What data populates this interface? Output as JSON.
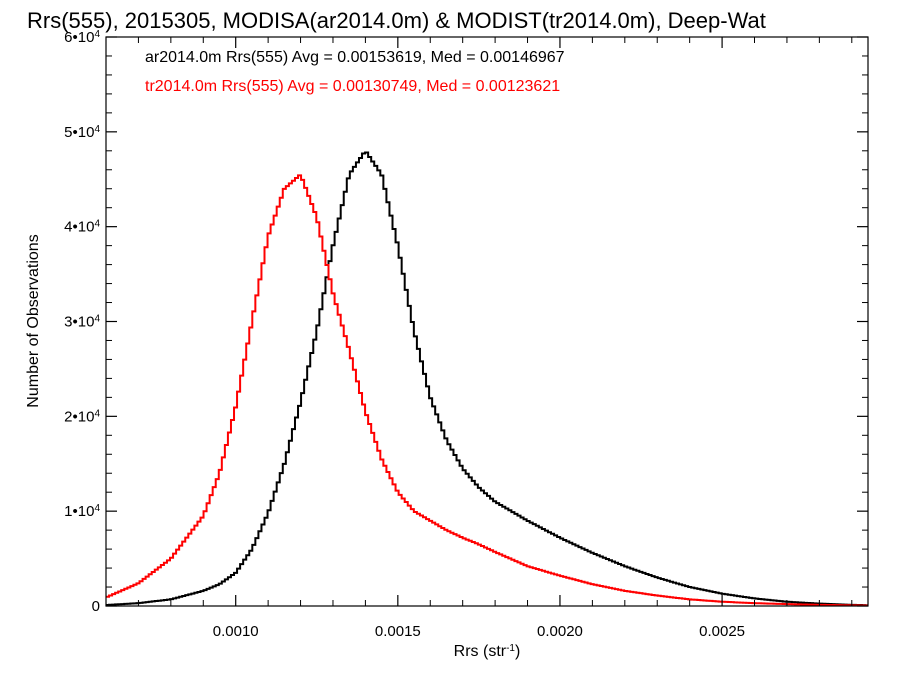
{
  "chart_data": {
    "type": "line",
    "step": true,
    "title": "Rrs(555), 2015305, MODISA(ar2014.0m) & MODIST(tr2014.0m), Deep-Wat",
    "xlabel": "Rrs (str",
    "xlabel_sup": "-1",
    "xlabel_suffix": ")",
    "ylabel": "Number of Observations",
    "xlim": [
      0.0006,
      0.00295
    ],
    "ylim": [
      0,
      60000
    ],
    "grid": false,
    "x_ticks": [
      {
        "value": 0.001,
        "label": "0.0010"
      },
      {
        "value": 0.0015,
        "label": "0.0015"
      },
      {
        "value": 0.002,
        "label": "0.0020"
      },
      {
        "value": 0.0025,
        "label": "0.0025"
      }
    ],
    "y_ticks": [
      {
        "value": 0,
        "label": "0",
        "exp": ""
      },
      {
        "value": 10000,
        "label": "1•10",
        "exp": "4"
      },
      {
        "value": 20000,
        "label": "2•10",
        "exp": "4"
      },
      {
        "value": 30000,
        "label": "3•10",
        "exp": "4"
      },
      {
        "value": 40000,
        "label": "4•10",
        "exp": "4"
      },
      {
        "value": 50000,
        "label": "5•10",
        "exp": "4"
      },
      {
        "value": 60000,
        "label": "6•10",
        "exp": "4"
      }
    ],
    "annotations": [
      {
        "text": "ar2014.0m Rrs(555) Avg = 0.00153619, Med = 0.00146967",
        "color": "#000000"
      },
      {
        "text": "tr2014.0m Rrs(555) Avg = 0.00130749, Med = 0.00123621",
        "color": "#ff0000"
      }
    ],
    "series": [
      {
        "color": "#000000",
        "x": [
          0.0006,
          0.0007,
          0.0008,
          0.0009,
          0.00095,
          0.001,
          0.00105,
          0.0011,
          0.00115,
          0.0012,
          0.00125,
          0.0013,
          0.00135,
          0.0014,
          0.00145,
          0.0015,
          0.00155,
          0.0016,
          0.00165,
          0.0017,
          0.00175,
          0.0018,
          0.0019,
          0.002,
          0.0021,
          0.0022,
          0.0023,
          0.0024,
          0.0025,
          0.0026,
          0.0027,
          0.0028,
          0.0029,
          0.00295
        ],
        "y": [
          100,
          300,
          700,
          1600,
          2300,
          3500,
          6000,
          9800,
          15000,
          21500,
          29000,
          38000,
          45500,
          48000,
          45500,
          38000,
          29000,
          22000,
          17500,
          14500,
          12500,
          11000,
          9000,
          7200,
          5600,
          4200,
          3000,
          2000,
          1300,
          800,
          450,
          250,
          120,
          80
        ]
      },
      {
        "color": "#ff0000",
        "x": [
          0.0006,
          0.0007,
          0.0008,
          0.0009,
          0.00095,
          0.001,
          0.00105,
          0.0011,
          0.00115,
          0.0012,
          0.00125,
          0.0013,
          0.00135,
          0.0014,
          0.00145,
          0.0015,
          0.00155,
          0.0016,
          0.00165,
          0.0017,
          0.00175,
          0.0018,
          0.0019,
          0.002,
          0.0021,
          0.0022,
          0.0023,
          0.0024,
          0.0025,
          0.0026,
          0.0027,
          0.0028,
          0.0029,
          0.00295
        ],
        "y": [
          900,
          2400,
          5000,
          9500,
          14000,
          21000,
          30000,
          39000,
          44000,
          45500,
          41000,
          33000,
          27000,
          20500,
          15500,
          12000,
          10000,
          9000,
          8000,
          7200,
          6500,
          5700,
          4200,
          3200,
          2300,
          1600,
          1100,
          700,
          450,
          300,
          200,
          120,
          70,
          50
        ]
      }
    ]
  }
}
